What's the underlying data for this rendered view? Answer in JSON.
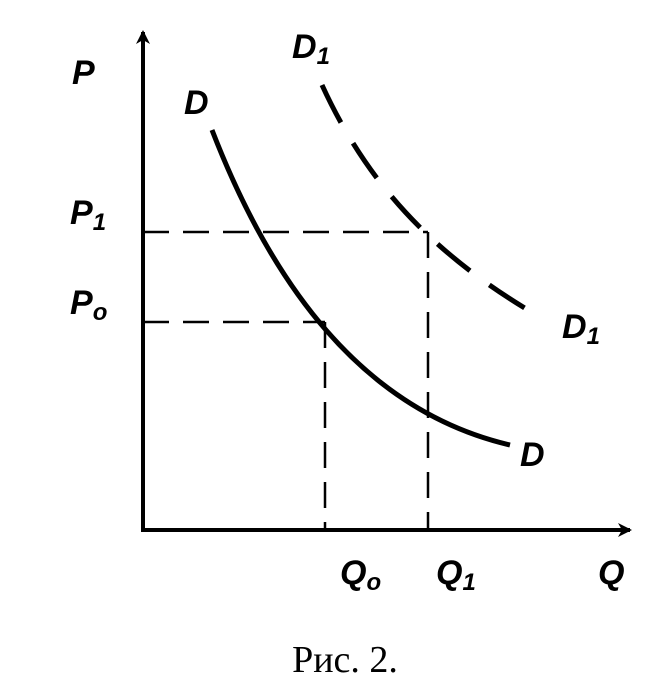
{
  "axes": {
    "y": "P",
    "x": "Q"
  },
  "prices": [
    {
      "letter": "P",
      "sub": "1"
    },
    {
      "letter": "P",
      "sub": "o"
    }
  ],
  "quantities": [
    {
      "letter": "Q",
      "sub": "o"
    },
    {
      "letter": "Q",
      "sub": "1"
    }
  ],
  "curves": {
    "demand": {
      "start": "D",
      "end": "D"
    },
    "shifted": {
      "start": {
        "letter": "D",
        "sub": "1"
      },
      "end": {
        "letter": "D",
        "sub": "1"
      }
    }
  },
  "caption": "Рис. 2."
}
